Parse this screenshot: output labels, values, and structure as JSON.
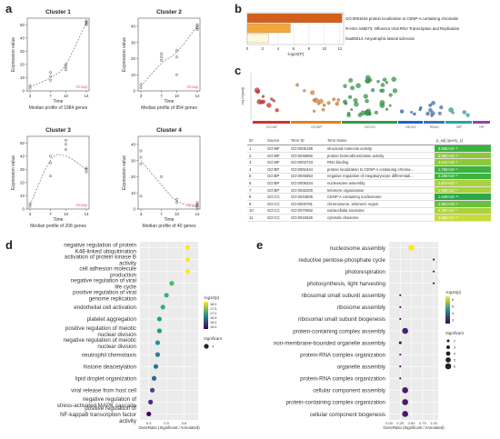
{
  "panel_letters": [
    "a",
    "b",
    "c",
    "d",
    "e"
  ],
  "clusters": [
    {
      "title": "Cluster 1",
      "caption": "Median profile of 1984 genes",
      "ylabel": "Expression value",
      "xlabel": "Time",
      "x": [
        3,
        7,
        10,
        14
      ],
      "yticks": [
        0,
        10,
        20,
        30,
        40,
        50
      ],
      "ylim": [
        0,
        55
      ],
      "legend": "Group",
      "points": [
        [
          3,
          2
        ],
        [
          3,
          4
        ],
        [
          7,
          8
        ],
        [
          7,
          11
        ],
        [
          7,
          14
        ],
        [
          10,
          16
        ],
        [
          10,
          18
        ],
        [
          10,
          20
        ],
        [
          14,
          50
        ],
        [
          14,
          51
        ],
        [
          14,
          52
        ],
        [
          14,
          53
        ]
      ],
      "curve": [
        [
          3,
          3
        ],
        [
          7,
          10
        ],
        [
          10,
          20
        ],
        [
          14,
          52
        ]
      ]
    },
    {
      "title": "Cluster 2",
      "caption": "Median profile of 854 genes",
      "ylabel": "Expression value",
      "xlabel": "Time",
      "x": [
        3,
        7,
        10,
        14
      ],
      "yticks": [
        0,
        10,
        20,
        30,
        40
      ],
      "ylim": [
        0,
        45
      ],
      "legend": "Group",
      "points": [
        [
          3,
          2
        ],
        [
          3,
          4
        ],
        [
          7,
          19
        ],
        [
          7,
          21
        ],
        [
          7,
          23
        ],
        [
          10,
          10
        ],
        [
          10,
          21
        ],
        [
          10,
          25
        ],
        [
          14,
          38
        ],
        [
          14,
          39
        ],
        [
          14,
          40
        ],
        [
          14,
          41
        ]
      ],
      "curve": [
        [
          3,
          3
        ],
        [
          7,
          17
        ],
        [
          10,
          24
        ],
        [
          14,
          40
        ]
      ]
    },
    {
      "title": "Cluster 3",
      "caption": "Median profile of 208 genes",
      "ylabel": "Expression value",
      "xlabel": "Time",
      "x": [
        3,
        7,
        10,
        14
      ],
      "yticks": [
        0,
        10,
        20,
        30,
        40,
        50
      ],
      "ylim": [
        0,
        55
      ],
      "legend": "Group",
      "points": [
        [
          3,
          2
        ],
        [
          3,
          4
        ],
        [
          7,
          25
        ],
        [
          7,
          35
        ],
        [
          7,
          40
        ],
        [
          10,
          45
        ],
        [
          10,
          49
        ],
        [
          10,
          52
        ],
        [
          14,
          28
        ],
        [
          14,
          30
        ],
        [
          14,
          31
        ]
      ],
      "curve": [
        [
          3,
          3
        ],
        [
          7,
          37
        ],
        [
          10,
          40
        ],
        [
          14,
          30
        ]
      ]
    },
    {
      "title": "Cluster 4",
      "caption": "Median profile of 40 genes",
      "ylabel": "Expression value",
      "xlabel": "Time",
      "x": [
        3,
        7,
        10,
        14
      ],
      "yticks": [
        0,
        10,
        20,
        30,
        40
      ],
      "ylim": [
        0,
        45
      ],
      "legend": "Group",
      "points": [
        [
          3,
          8
        ],
        [
          3,
          28
        ],
        [
          3,
          32
        ],
        [
          3,
          36
        ],
        [
          7,
          20
        ],
        [
          10,
          4
        ],
        [
          10,
          6
        ],
        [
          14,
          1
        ],
        [
          14,
          2
        ],
        [
          14,
          3
        ],
        [
          14,
          4
        ]
      ],
      "curve": [
        [
          3,
          30
        ],
        [
          7,
          15
        ],
        [
          10,
          5
        ],
        [
          14,
          1
        ]
      ]
    }
  ],
  "panel_b": {
    "xlabel": "-log10(P)",
    "xticks": [
      0,
      2,
      4,
      6,
      8,
      10,
      12
    ],
    "bars": [
      {
        "label": "GO:0061644 protein localization to CENP-A containing chromatin",
        "value": 12.3,
        "color": "#d35f1a"
      },
      {
        "label": "R-HSA-168273: Influenza Viral RNA Transcription and Replication",
        "value": 5.6,
        "color": "#f3a73a"
      },
      {
        "label": "hsa05014: Amyotrophic lateral sclerosis",
        "value": 2.8,
        "color": "#fdf7dc"
      }
    ]
  },
  "panel_c": {
    "yaxis": "-log10(padj)",
    "categories": [
      "GO:MF",
      "GO:BP",
      "GO:CC",
      "KEGG",
      "REAC",
      "WP",
      "HP"
    ],
    "category_colors": [
      "#d62f2b",
      "#e67e22",
      "#2e9e45",
      "#1f63c9",
      "#3b72b8",
      "#23a89a",
      "#8e44ad"
    ],
    "table_headers": [
      "ID",
      "Source",
      "Term ID",
      "Term Name",
      "p_adj (query_1)"
    ],
    "rows": [
      [
        "1",
        "GO:MF",
        "GO:0005198",
        "structural molecule activity",
        "3.665×10⁻⁹",
        "#3bb33f"
      ],
      [
        "2",
        "GO:MF",
        "GO:0046982",
        "protein heterodimerization activity",
        "4.864×10⁻⁶",
        "#8fc93a"
      ],
      [
        "3",
        "GO:MF",
        "GO:0003723",
        "RNA binding",
        "4.012×10⁻⁶",
        "#8fc93a"
      ],
      [
        "4",
        "GO:BP",
        "GO:0061644",
        "protein localization to CENP-A containing chroma...",
        "1.768×10⁻⁹",
        "#3bb33f"
      ],
      [
        "5",
        "GO:BP",
        "GO:0045653",
        "negative regulation of megakaryocyte differentiati...",
        "2.256×10⁻⁹",
        "#3bb33f"
      ],
      [
        "6",
        "GO:BP",
        "GO:0006334",
        "nucleosome assembly",
        "1.874×10⁻⁷",
        "#a9d33a"
      ],
      [
        "7",
        "GO:BP",
        "GO:0032200",
        "telomere organization",
        "1.968×10⁻⁷",
        "#a9d33a"
      ],
      [
        "8",
        "GO:CC",
        "GO:0043505",
        "CENP-A containing nucleosome",
        "1.649×10⁻¹¹",
        "#2aa84a"
      ],
      [
        "9",
        "GO:CC",
        "GO:0000781",
        "chromosome, telomeric region",
        "1.861×10⁻⁸",
        "#6cbf3d"
      ],
      [
        "10",
        "GO:CC",
        "GO:0070062",
        "extracellular exosome",
        "4.380×10⁻⁷",
        "#a9d33a"
      ],
      [
        "11",
        "GO:CC",
        "GO:0022626",
        "cytosolic ribosome",
        "3.668×10⁻⁶",
        "#c7dc35"
      ]
    ]
  },
  "chart_data": [
    {
      "type": "scatter",
      "panel": "d",
      "xlabel": "GeneRatio (Significant / Annotated)",
      "legend_title": "-log10(p)",
      "size_legend_title": "Significant",
      "xticks": [
        "0.4",
        "0.5",
        "0.6"
      ],
      "xlim": [
        0.35,
        0.68
      ],
      "color_ticks": [
        "18.0",
        "17.5",
        "17.0",
        "16.5",
        "16.0",
        "15.5"
      ],
      "size_ticks": [
        "4"
      ],
      "terms": [
        {
          "label": "negative regulation of protein K48-linked ubiquitination",
          "ratio": 0.62,
          "logp": 18.1,
          "color": "#fde725",
          "sig": 4
        },
        {
          "label": "activation of protein kinase B activity",
          "ratio": 0.62,
          "logp": 18.0,
          "color": "#fde725",
          "sig": 4
        },
        {
          "label": "cell adhesion molecule production",
          "ratio": 0.62,
          "logp": 18.0,
          "color": "#fde725",
          "sig": 4
        },
        {
          "label": "negative regulation of viral life cycle",
          "ratio": 0.53,
          "logp": 17.0,
          "color": "#3fbc73",
          "sig": 4
        },
        {
          "label": "positive regulation of viral genome replication",
          "ratio": 0.5,
          "logp": 16.9,
          "color": "#35b779",
          "sig": 4
        },
        {
          "label": "endothelial cell activation",
          "ratio": 0.48,
          "logp": 16.8,
          "color": "#2db27d",
          "sig": 4
        },
        {
          "label": "platelet aggregation",
          "ratio": 0.46,
          "logp": 16.6,
          "color": "#20a386",
          "sig": 4
        },
        {
          "label": "positive regulation of meiotic nuclear division",
          "ratio": 0.46,
          "logp": 16.6,
          "color": "#1f9a8a",
          "sig": 4
        },
        {
          "label": "negative regulation of meiotic nuclear division",
          "ratio": 0.45,
          "logp": 16.4,
          "color": "#22928c",
          "sig": 4
        },
        {
          "label": "neutrophil chemotaxis",
          "ratio": 0.45,
          "logp": 16.3,
          "color": "#26828e",
          "sig": 4
        },
        {
          "label": "histone deacetylation",
          "ratio": 0.44,
          "logp": 16.2,
          "color": "#2a788e",
          "sig": 4
        },
        {
          "label": "lipid droplet organization",
          "ratio": 0.43,
          "logp": 16.0,
          "color": "#33638d",
          "sig": 4
        },
        {
          "label": "viral release from host cell",
          "ratio": 0.42,
          "logp": 15.9,
          "color": "#3e4989",
          "sig": 4
        },
        {
          "label": "negative regulation of stress-activated MAPK cascade",
          "ratio": 0.41,
          "logp": 15.8,
          "color": "#472d7b",
          "sig": 4
        },
        {
          "label": "positive regulation of NF-kappaB transcription factor activity",
          "ratio": 0.4,
          "logp": 15.6,
          "color": "#440154",
          "sig": 4
        }
      ]
    },
    {
      "type": "scatter",
      "panel": "e",
      "xlabel": "GeneRatio (Significant / Annotated)",
      "legend_title": "-log10(p)",
      "size_legend_title": "Significant",
      "xticks": [
        "0.00",
        "0.25",
        "0.50",
        "0.75",
        "1.00"
      ],
      "xlim": [
        0,
        1.1
      ],
      "color_ticks": [
        "6",
        "5",
        "4",
        "3"
      ],
      "size_ticks": [
        "2",
        "3",
        "4",
        "5",
        "6"
      ],
      "terms": [
        {
          "label": "nucleosome assembly",
          "ratio": 0.5,
          "logp": 6.3,
          "color": "#fde725",
          "sig": 6
        },
        {
          "label": "reductive pentose-phosphate cycle",
          "ratio": 1.0,
          "logp": 2.5,
          "color": "#440154",
          "sig": 1
        },
        {
          "label": "photorespiration",
          "ratio": 1.0,
          "logp": 2.5,
          "color": "#440154",
          "sig": 1
        },
        {
          "label": "photosynthesis, light harvesting",
          "ratio": 1.0,
          "logp": 2.5,
          "color": "#440154",
          "sig": 1
        },
        {
          "label": "ribosomal small subunit assembly",
          "ratio": 0.25,
          "logp": 2.6,
          "color": "#440154",
          "sig": 1
        },
        {
          "label": "ribosome assembly",
          "ratio": 0.25,
          "logp": 2.6,
          "color": "#440154",
          "sig": 1
        },
        {
          "label": "ribosomal small subunit biogenesis",
          "ratio": 0.25,
          "logp": 2.6,
          "color": "#440154",
          "sig": 1
        },
        {
          "label": "protein-containing complex assembly",
          "ratio": 0.36,
          "logp": 3.1,
          "color": "#482173",
          "sig": 6
        },
        {
          "label": "non-membrane-bounded organelle assembly",
          "ratio": 0.25,
          "logp": 2.7,
          "color": "#440154",
          "sig": 2
        },
        {
          "label": "protein-RNA complex organization",
          "ratio": 0.25,
          "logp": 2.6,
          "color": "#440154",
          "sig": 1
        },
        {
          "label": "organelle assembly",
          "ratio": 0.25,
          "logp": 2.6,
          "color": "#440154",
          "sig": 1
        },
        {
          "label": "protein-RNA complex organization",
          "ratio": 0.25,
          "logp": 2.6,
          "color": "#440154",
          "sig": 1
        },
        {
          "label": "cellular component assembly",
          "ratio": 0.36,
          "logp": 3.0,
          "color": "#481a6c",
          "sig": 6
        },
        {
          "label": "protein-containing complex organization",
          "ratio": 0.36,
          "logp": 3.0,
          "color": "#481a6c",
          "sig": 6
        },
        {
          "label": "cellular component biogenesis",
          "ratio": 0.36,
          "logp": 3.0,
          "color": "#481a6c",
          "sig": 6
        }
      ]
    }
  ]
}
